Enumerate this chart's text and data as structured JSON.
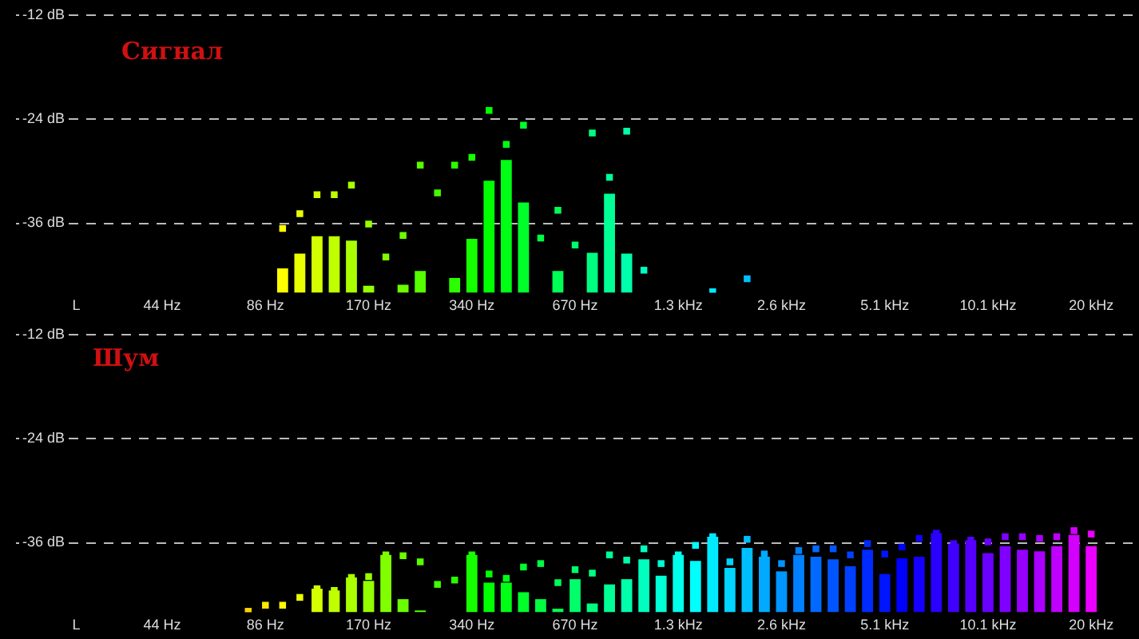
{
  "chart_data": [
    {
      "type": "bar",
      "title": "Сигнал",
      "grid": "y",
      "legend": false,
      "marker": "square",
      "categories": [
        null,
        null,
        null,
        "L",
        null,
        null,
        null,
        null,
        "44 Hz",
        null,
        null,
        null,
        null,
        null,
        "86 Hz",
        null,
        null,
        null,
        null,
        null,
        "170 Hz",
        null,
        null,
        null,
        null,
        null,
        "340 Hz",
        null,
        null,
        null,
        null,
        null,
        "670 Hz",
        null,
        null,
        null,
        null,
        null,
        "1.3 kHz",
        null,
        null,
        null,
        null,
        null,
        "2.6 kHz",
        null,
        null,
        null,
        null,
        null,
        "5.1 kHz",
        null,
        null,
        null,
        null,
        null,
        "10.1 kHz",
        null,
        null,
        null,
        null,
        null,
        "20 kHz",
        null,
        null
      ],
      "ylim": [
        -44,
        -12
      ],
      "yticks": [
        {
          "value": -12,
          "label": "-12 dB"
        },
        {
          "value": -24,
          "label": "-24 dB"
        },
        {
          "value": -36,
          "label": "-36 dB"
        }
      ],
      "series": [
        {
          "values": [
            null,
            null,
            null,
            null,
            null,
            null,
            null,
            null,
            null,
            null,
            null,
            null,
            null,
            null,
            null,
            2.8,
            4.5,
            6.5,
            6.5,
            6.0,
            0.8,
            null,
            0.9,
            2.5,
            null,
            1.7,
            6.2,
            12.9,
            15.3,
            10.4,
            null,
            2.5,
            null,
            4.6,
            11.4,
            4.5,
            null,
            null,
            null,
            null,
            null,
            null,
            null,
            null,
            null,
            null,
            null,
            null,
            null,
            null,
            null,
            null,
            null,
            null,
            null,
            null,
            null,
            null,
            null,
            null,
            null,
            null,
            null,
            null,
            null
          ],
          "base": [
            null,
            null,
            null,
            null,
            null,
            null,
            null,
            null,
            null,
            null,
            null,
            null,
            null,
            null,
            null,
            -44,
            -44,
            -44,
            -44,
            -44,
            -44,
            null,
            -44,
            -44,
            null,
            -44,
            -44,
            -44,
            -44,
            -44,
            null,
            -44,
            null,
            -44,
            -44,
            -44,
            null,
            null,
            null,
            null,
            null,
            null,
            null,
            null,
            null,
            null,
            null,
            null,
            null,
            null,
            null,
            null,
            null,
            null,
            null,
            null,
            null,
            null,
            null,
            null,
            null,
            null,
            null,
            null,
            null
          ],
          "colors": [
            "#ffd400",
            "#ffd400",
            "#ffd400",
            "#ffd400",
            "#ffd400",
            "#ffd400",
            "#ffd400",
            "#ffd400",
            "#ffd400",
            "#ffd400",
            "#ffd400",
            "#ffd400",
            "#ffd400",
            "#ffd400",
            "#ffea00",
            "#ffff00",
            "#eaff00",
            "#d4ff00",
            "#bfff00",
            "#aaff00",
            "#95ff00",
            "#80ff00",
            "#6aff00",
            "#55ff00",
            "#40ff00",
            "#2aff00",
            "#15ff00",
            "#00ff00",
            "#00ff15",
            "#00ff2a",
            "#00ff40",
            "#00ff55",
            "#00ff6a",
            "#00ff80",
            "#00ff95",
            "#00ffaa",
            "#00ffbf",
            "#00ffd4",
            "#00ffea",
            "#00ffff",
            "#00eaff",
            "#00d4ff",
            "#00bfff",
            "#00aaff",
            "#0095ff",
            "#0080ff",
            "#006aff",
            "#0055ff",
            "#0040ff",
            "#002aff",
            "#0015ff",
            "#0000ff",
            "#1500ff",
            "#2a00ff",
            "#4000ff",
            "#5500ff",
            "#6a00ff",
            "#8000ff",
            "#9500ff",
            "#aa00ff",
            "#bf00ff",
            "#d400ff",
            "#ea00ff",
            "#ff00ff",
            "#ff00ea"
          ]
        },
        {
          "type": "scatter",
          "values": [
            null,
            null,
            null,
            null,
            null,
            null,
            null,
            null,
            null,
            null,
            null,
            null,
            null,
            null,
            null,
            -36.6,
            -34.9,
            -32.7,
            -32.7,
            -31.6,
            -36.1,
            -39.9,
            -37.4,
            -29.3,
            -32.5,
            -29.3,
            -28.4,
            -23.0,
            -26.9,
            -24.7,
            -37.7,
            -34.5,
            -38.5,
            -25.6,
            -30.7,
            -25.4,
            -41.4,
            null,
            null,
            null,
            -43.9,
            null,
            -42.4,
            null,
            null,
            null,
            null,
            null,
            null,
            null,
            null,
            null,
            null,
            null,
            null,
            null,
            null,
            null,
            null,
            null,
            null,
            null,
            null,
            null,
            null
          ],
          "colors": [
            "#ffd400",
            "#ffd400",
            "#ffd400",
            "#ffd400",
            "#ffd400",
            "#ffd400",
            "#ffd400",
            "#ffd400",
            "#ffd400",
            "#ffd400",
            "#ffd400",
            "#ffd400",
            "#ffd400",
            "#ffd400",
            "#ffea00",
            "#ffff00",
            "#eaff00",
            "#d4ff00",
            "#bfff00",
            "#aaff00",
            "#95ff00",
            "#80ff00",
            "#6aff00",
            "#55ff00",
            "#40ff00",
            "#2aff00",
            "#15ff00",
            "#00ff00",
            "#00ff15",
            "#00ff2a",
            "#00ff40",
            "#00ff55",
            "#00ff6a",
            "#00ff80",
            "#00ff95",
            "#00ffaa",
            "#00ffbf",
            "#00ffd4",
            "#00ffea",
            "#00ffff",
            "#00eaff",
            "#00d4ff",
            "#00bfff",
            "#00aaff",
            "#0095ff",
            "#0080ff",
            "#006aff",
            "#0055ff",
            "#0040ff",
            "#002aff",
            "#0015ff",
            "#0000ff",
            "#1500ff",
            "#2a00ff",
            "#4000ff",
            "#5500ff",
            "#6a00ff",
            "#8000ff",
            "#9500ff",
            "#aa00ff",
            "#bf00ff",
            "#d400ff",
            "#ea00ff",
            "#ff00ff",
            "#ff00ea"
          ]
        }
      ]
    },
    {
      "type": "bar",
      "title": "Шум",
      "grid": "y",
      "legend": false,
      "marker": "square",
      "categories": [
        null,
        null,
        null,
        "L",
        null,
        null,
        null,
        null,
        "44 Hz",
        null,
        null,
        null,
        null,
        null,
        "86 Hz",
        null,
        null,
        null,
        null,
        null,
        "170 Hz",
        null,
        null,
        null,
        null,
        null,
        "340 Hz",
        null,
        null,
        null,
        null,
        null,
        "670 Hz",
        null,
        null,
        null,
        null,
        null,
        "1.3 kHz",
        null,
        null,
        null,
        null,
        null,
        "2.6 kHz",
        null,
        null,
        null,
        null,
        null,
        "5.1 kHz",
        null,
        null,
        null,
        null,
        null,
        "10.1 kHz",
        null,
        null,
        null,
        null,
        null,
        "20 kHz",
        null,
        null
      ],
      "ylim": [
        -44,
        -12
      ],
      "yticks": [
        {
          "value": -12,
          "label": "-12 dB"
        },
        {
          "value": -24,
          "label": "-24 dB"
        },
        {
          "value": -36,
          "label": "-36 dB"
        }
      ],
      "series": [
        {
          "values": [
            null,
            null,
            null,
            null,
            null,
            null,
            null,
            null,
            null,
            null,
            null,
            null,
            null,
            null,
            null,
            null,
            null,
            2.7,
            2.5,
            4.0,
            3.6,
            6.6,
            1.5,
            0.2,
            null,
            null,
            6.6,
            3.4,
            3.4,
            2.3,
            1.5,
            0.4,
            3.8,
            1.0,
            3.2,
            3.8,
            6.1,
            4.2,
            6.6,
            5.9,
            8.7,
            5.1,
            7.4,
            6.4,
            4.7,
            6.6,
            6.4,
            6.1,
            5.3,
            7.2,
            4.4,
            6.2,
            6.4,
            9.1,
            7.9,
            8.3,
            6.8,
            7.6,
            7.2,
            7.0,
            7.6,
            8.9,
            7.6,
            null,
            null
          ],
          "base": [
            null,
            null,
            null,
            null,
            null,
            null,
            null,
            null,
            null,
            null,
            null,
            null,
            null,
            null,
            null,
            null,
            null,
            -44,
            -44,
            -44,
            -44,
            -44,
            -44,
            -44,
            null,
            null,
            -44,
            -44,
            -44,
            -44,
            -44,
            -44,
            -44,
            -44,
            -44,
            -44,
            -44,
            -44,
            -44,
            -44,
            -44,
            -44,
            -44,
            -44,
            -44,
            -44,
            -44,
            -44,
            -44,
            -44,
            -44,
            -44,
            -44,
            -44,
            -44,
            -44,
            -44,
            -44,
            -44,
            -44,
            -44,
            -44,
            -44,
            null,
            null
          ],
          "colors": [
            "#ffd400",
            "#ffd400",
            "#ffd400",
            "#ffd400",
            "#ffd400",
            "#ffd400",
            "#ffd400",
            "#ffd400",
            "#ffd400",
            "#ffd400",
            "#ffd400",
            "#ffd400",
            "#ffd400",
            "#ffd400",
            "#ffea00",
            "#ffff00",
            "#eaff00",
            "#d4ff00",
            "#bfff00",
            "#aaff00",
            "#95ff00",
            "#80ff00",
            "#6aff00",
            "#55ff00",
            "#40ff00",
            "#2aff00",
            "#15ff00",
            "#00ff00",
            "#00ff15",
            "#00ff2a",
            "#00ff40",
            "#00ff55",
            "#00ff6a",
            "#00ff80",
            "#00ff95",
            "#00ffaa",
            "#00ffbf",
            "#00ffd4",
            "#00ffea",
            "#00ffff",
            "#00eaff",
            "#00d4ff",
            "#00bfff",
            "#00aaff",
            "#0095ff",
            "#0080ff",
            "#006aff",
            "#0055ff",
            "#0040ff",
            "#002aff",
            "#0015ff",
            "#0000ff",
            "#1500ff",
            "#2a00ff",
            "#4000ff",
            "#5500ff",
            "#6a00ff",
            "#8000ff",
            "#9500ff",
            "#aa00ff",
            "#bf00ff",
            "#d400ff",
            "#ea00ff",
            "#ff00ff",
            "#ff00ea"
          ]
        },
        {
          "type": "scatter",
          "values": [
            null,
            null,
            null,
            null,
            null,
            null,
            null,
            null,
            null,
            null,
            null,
            null,
            null,
            -43.9,
            -43.2,
            -43.2,
            -42.3,
            -41.3,
            -41.5,
            -40.0,
            -39.9,
            -37.4,
            -37.5,
            -38.2,
            -40.8,
            -40.3,
            -37.4,
            -39.6,
            -40.1,
            -38.8,
            -38.4,
            -40.6,
            -39.1,
            -39.5,
            -37.4,
            -38.0,
            -36.7,
            -38.4,
            -37.4,
            -36.3,
            -35.3,
            -38.2,
            -35.6,
            -37.3,
            -38.4,
            -36.9,
            -36.7,
            -36.7,
            -37.4,
            -36.1,
            -37.3,
            -36.5,
            -35.5,
            -34.9,
            -36.1,
            -35.7,
            -35.9,
            -35.3,
            -35.3,
            -35.5,
            -35.3,
            -34.6,
            -35.0,
            null,
            null
          ],
          "colors": [
            "#ffd400",
            "#ffd400",
            "#ffd400",
            "#ffd400",
            "#ffd400",
            "#ffd400",
            "#ffd400",
            "#ffd400",
            "#ffd400",
            "#ffd400",
            "#ffd400",
            "#ffd400",
            "#ffd400",
            "#ffd400",
            "#ffea00",
            "#ffff00",
            "#eaff00",
            "#d4ff00",
            "#bfff00",
            "#aaff00",
            "#95ff00",
            "#80ff00",
            "#6aff00",
            "#55ff00",
            "#40ff00",
            "#2aff00",
            "#15ff00",
            "#00ff00",
            "#00ff15",
            "#00ff2a",
            "#00ff40",
            "#00ff55",
            "#00ff6a",
            "#00ff80",
            "#00ff95",
            "#00ffaa",
            "#00ffbf",
            "#00ffd4",
            "#00ffea",
            "#00ffff",
            "#00eaff",
            "#00d4ff",
            "#00bfff",
            "#00aaff",
            "#0095ff",
            "#0080ff",
            "#006aff",
            "#0055ff",
            "#0040ff",
            "#002aff",
            "#0015ff",
            "#0000ff",
            "#1500ff",
            "#2a00ff",
            "#4000ff",
            "#5500ff",
            "#6a00ff",
            "#8000ff",
            "#9500ff",
            "#aa00ff",
            "#bf00ff",
            "#d400ff",
            "#ea00ff",
            "#ff00ff",
            "#ff00ea"
          ]
        }
      ]
    }
  ]
}
